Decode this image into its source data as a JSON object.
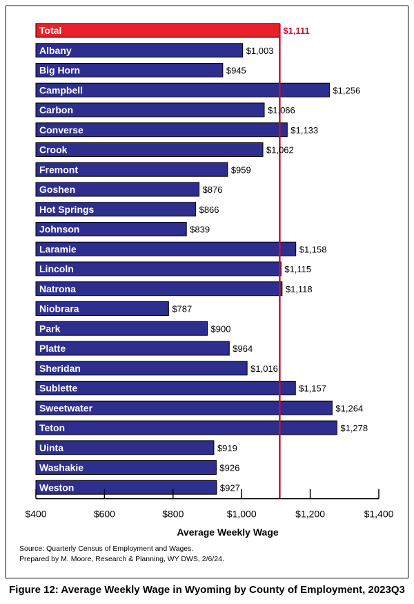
{
  "chart_data": {
    "type": "bar",
    "orientation": "horizontal",
    "title": "Figure 12: Average Weekly Wage in Wyoming by County of Employment, 2023Q3",
    "xlabel": "Average Weekly Wage",
    "ylabel": "",
    "xlim": [
      400,
      1400
    ],
    "x_ticks": [
      "$400",
      "$600",
      "$800",
      "$1,000",
      "$1,200",
      "$1,400"
    ],
    "categories": [
      "Total",
      "Albany",
      "Big Horn",
      "Campbell",
      "Carbon",
      "Converse",
      "Crook",
      "Fremont",
      "Goshen",
      "Hot Springs",
      "Johnson",
      "Laramie",
      "Lincoln",
      "Natrona",
      "Niobrara",
      "Park",
      "Platte",
      "Sheridan",
      "Sublette",
      "Sweetwater",
      "Teton",
      "Uinta",
      "Washakie",
      "Weston"
    ],
    "values": [
      1111,
      1003,
      945,
      1256,
      1066,
      1133,
      1062,
      959,
      876,
      866,
      839,
      1158,
      1115,
      1118,
      787,
      900,
      964,
      1016,
      1157,
      1264,
      1278,
      919,
      926,
      927
    ],
    "value_labels": [
      "$1,111",
      "$1,003",
      "$945",
      "$1,256",
      "$1,066",
      "$1,133",
      "$1,062",
      "$959",
      "$876",
      "$866",
      "$839",
      "$1,158",
      "$1,115",
      "$1,118",
      "$787",
      "$900",
      "$964",
      "$1,016",
      "$1,157",
      "$1,264",
      "$1,278",
      "$919",
      "$926",
      "$927"
    ],
    "reference_line": {
      "value": 1111
    },
    "grid": false,
    "legend": "none",
    "colors": {
      "bar": "#2e2e8f",
      "total_bar": "#e8202a",
      "reference": "#c8102e",
      "total_label": "#c8102e"
    }
  },
  "source_lines": [
    "Source: Quarterly Census of Employment and Wages.",
    "Prepared by M. Moore, Research & Planning, WY DWS, 2/6/24."
  ]
}
